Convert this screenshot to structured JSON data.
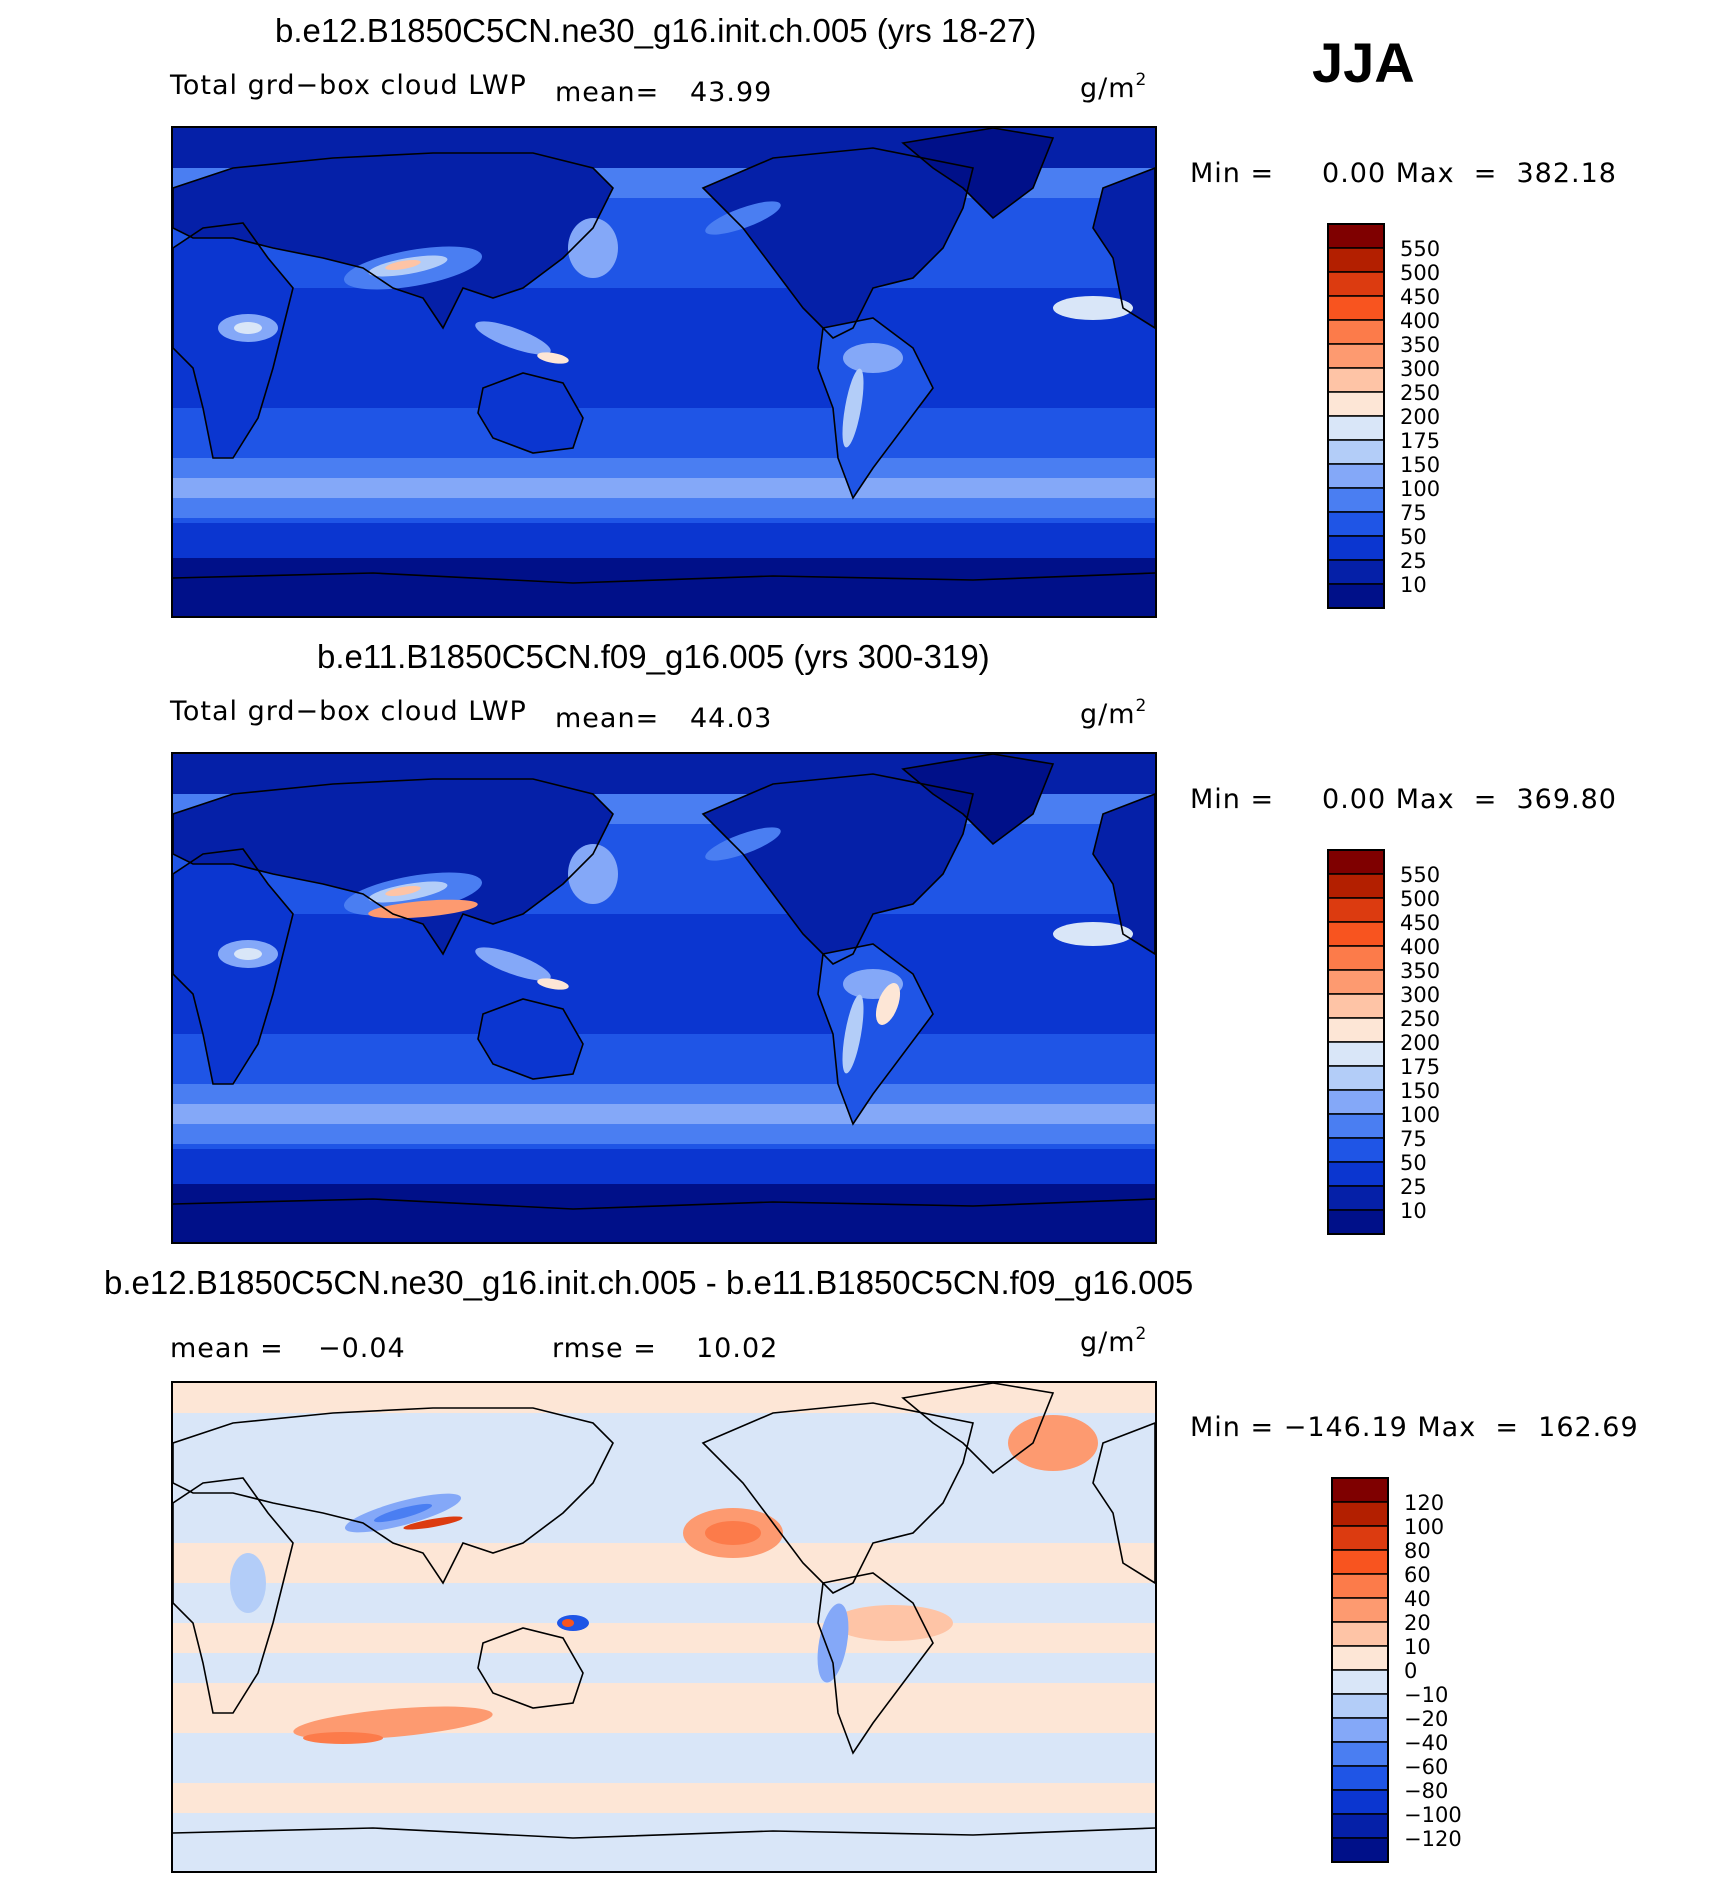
{
  "season": "JJA",
  "panels": [
    {
      "title": "b.e12.B1850C5CN.ne30_g16.init.ch.005 (yrs 18-27)",
      "variable": "Total grd−box cloud LWP",
      "stat_label": "mean=",
      "stat_value": "43.99",
      "units_base": "g/m",
      "units_exp": "2",
      "minmax": "Min =     0.00 Max  =  382.18",
      "colorbar": {
        "levels": [
          "550",
          "500",
          "450",
          "400",
          "350",
          "300",
          "250",
          "200",
          "175",
          "150",
          "100",
          "75",
          "50",
          "25",
          "10"
        ],
        "colors": [
          "#7f0000",
          "#b31f00",
          "#dc3b10",
          "#f8541f",
          "#fc7b4a",
          "#fd9a70",
          "#fec4a6",
          "#fde6d6",
          "#d9e6f8",
          "#b3cdf8",
          "#84a8f8",
          "#4a7ef2",
          "#1f55e6",
          "#0b36d0",
          "#0520a8",
          "#001089"
        ]
      }
    },
    {
      "title": "b.e11.B1850C5CN.f09_g16.005 (yrs 300-319)",
      "variable": "Total grd−box cloud LWP",
      "stat_label": "mean=",
      "stat_value": "44.03",
      "units_base": "g/m",
      "units_exp": "2",
      "minmax": "Min =     0.00 Max  =  369.80",
      "colorbar": {
        "levels": [
          "550",
          "500",
          "450",
          "400",
          "350",
          "300",
          "250",
          "200",
          "175",
          "150",
          "100",
          "75",
          "50",
          "25",
          "10"
        ],
        "colors": [
          "#7f0000",
          "#b31f00",
          "#dc3b10",
          "#f8541f",
          "#fc7b4a",
          "#fd9a70",
          "#fec4a6",
          "#fde6d6",
          "#d9e6f8",
          "#b3cdf8",
          "#84a8f8",
          "#4a7ef2",
          "#1f55e6",
          "#0b36d0",
          "#0520a8",
          "#001089"
        ]
      }
    },
    {
      "title": "b.e12.B1850C5CN.ne30_g16.init.ch.005 - b.e11.B1850C5CN.f09_g16.005",
      "mean_label": "mean =",
      "mean_value": "−0.04",
      "rmse_label": "rmse =",
      "rmse_value": "10.02",
      "units_base": "g/m",
      "units_exp": "2",
      "minmax": "Min = −146.19 Max  =  162.69",
      "colorbar": {
        "levels": [
          "120",
          "100",
          "80",
          "60",
          "40",
          "20",
          "10",
          "0",
          "−10",
          "−20",
          "−40",
          "−60",
          "−80",
          "−100",
          "−120"
        ],
        "colors": [
          "#7f0000",
          "#b31f00",
          "#dc3b10",
          "#f8541f",
          "#fc7b4a",
          "#fd9a70",
          "#fec4a6",
          "#fde6d6",
          "#d9e6f8",
          "#b3cdf8",
          "#84a8f8",
          "#4a7ef2",
          "#1f55e6",
          "#0b36d0",
          "#0520a8",
          "#001089"
        ]
      }
    }
  ],
  "chart_data": [
    {
      "type": "heatmap",
      "title": "b.e12.B1850C5CN.ne30_g16.init.ch.005 (yrs 18-27)",
      "field": "Total grd−box cloud LWP",
      "units": "g/m2",
      "mean": 43.99,
      "min": 0.0,
      "max": 382.18,
      "contour_levels": [
        10,
        25,
        50,
        75,
        100,
        150,
        175,
        200,
        250,
        300,
        350,
        400,
        450,
        500,
        550
      ]
    },
    {
      "type": "heatmap",
      "title": "b.e11.B1850C5CN.f09_g16.005 (yrs 300-319)",
      "field": "Total grd−box cloud LWP",
      "units": "g/m2",
      "mean": 44.03,
      "min": 0.0,
      "max": 369.8,
      "contour_levels": [
        10,
        25,
        50,
        75,
        100,
        150,
        175,
        200,
        250,
        300,
        350,
        400,
        450,
        500,
        550
      ]
    },
    {
      "type": "heatmap",
      "title": "b.e12.B1850C5CN.ne30_g16.init.ch.005 - b.e11.B1850C5CN.f09_g16.005",
      "units": "g/m2",
      "mean": -0.04,
      "rmse": 10.02,
      "min": -146.19,
      "max": 162.69,
      "contour_levels": [
        -120,
        -100,
        -80,
        -60,
        -40,
        -20,
        -10,
        0,
        10,
        20,
        40,
        60,
        80,
        100,
        120
      ]
    }
  ]
}
